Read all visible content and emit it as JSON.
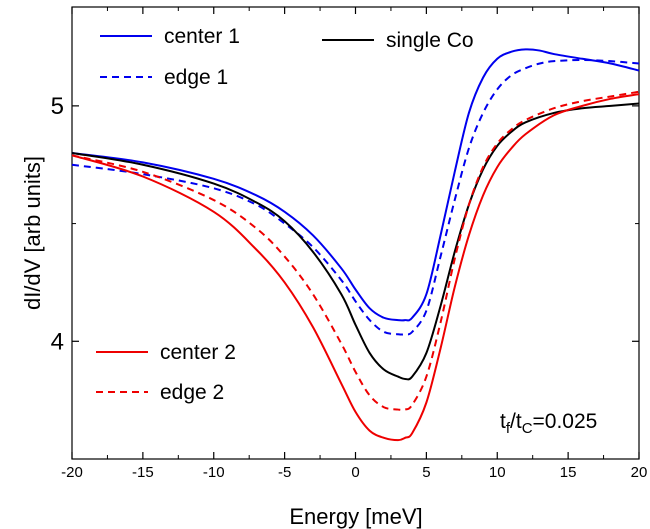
{
  "chart_data": {
    "type": "line",
    "xlabel": "Energy [meV]",
    "ylabel": "dI/dV [arb units]",
    "xlim": [
      -20,
      20
    ],
    "ylim": [
      3.5,
      5.42
    ],
    "x_ticks": [
      -20,
      -15,
      -10,
      -5,
      0,
      5,
      10,
      15,
      20
    ],
    "y_ticks": [
      4,
      5
    ],
    "y_tick_labels": [
      "4",
      "5"
    ],
    "grid": false,
    "annotation": {
      "main": "t",
      "sub1": "f",
      "slash": "/t",
      "sub2": "C",
      "value": "=0.025"
    },
    "series": [
      {
        "name": "center 1",
        "color": "#0000ee",
        "dash": "solid",
        "x": [
          -20,
          -15,
          -10,
          -7,
          -5,
          -3,
          -1,
          0,
          1,
          2,
          3,
          3.5,
          4,
          5,
          6,
          7,
          8,
          9,
          10,
          11,
          12,
          13,
          14,
          16,
          18,
          20
        ],
        "y": [
          4.8,
          4.76,
          4.69,
          4.62,
          4.55,
          4.45,
          4.31,
          4.22,
          4.14,
          4.1,
          4.09,
          4.09,
          4.1,
          4.2,
          4.45,
          4.72,
          4.97,
          5.12,
          5.2,
          5.23,
          5.24,
          5.235,
          5.22,
          5.2,
          5.18,
          5.15
        ]
      },
      {
        "name": "edge 1",
        "color": "#0000ee",
        "dash": "dashed",
        "x": [
          -20,
          -15,
          -10,
          -7,
          -5,
          -3,
          -1,
          0,
          1,
          2,
          3,
          3.5,
          4,
          5,
          6,
          7,
          8,
          9,
          10,
          11,
          12,
          13,
          14,
          16,
          18,
          20
        ],
        "y": [
          4.75,
          4.71,
          4.65,
          4.58,
          4.5,
          4.4,
          4.26,
          4.17,
          4.09,
          4.04,
          4.03,
          4.03,
          4.04,
          4.13,
          4.36,
          4.6,
          4.82,
          4.97,
          5.07,
          5.13,
          5.16,
          5.18,
          5.19,
          5.195,
          5.19,
          5.18
        ]
      },
      {
        "name": "single Co",
        "color": "#000000",
        "dash": "solid",
        "x": [
          -20,
          -15,
          -10,
          -7,
          -5,
          -3,
          -1,
          0,
          1,
          2,
          3,
          3.5,
          4,
          5,
          6,
          7,
          8,
          9,
          10,
          11,
          12,
          14,
          16,
          18,
          20
        ],
        "y": [
          4.8,
          4.75,
          4.67,
          4.59,
          4.51,
          4.38,
          4.2,
          4.07,
          3.95,
          3.88,
          3.85,
          3.84,
          3.85,
          3.95,
          4.15,
          4.38,
          4.58,
          4.73,
          4.83,
          4.89,
          4.93,
          4.97,
          4.99,
          5.0,
          5.01
        ]
      },
      {
        "name": "edge 2",
        "color": "#ee0000",
        "dash": "dashed",
        "x": [
          -20,
          -15,
          -10,
          -7,
          -5,
          -3,
          -1,
          0,
          1,
          2,
          3,
          3.5,
          4,
          5,
          6,
          7,
          8,
          9,
          10,
          11,
          12,
          14,
          16,
          18,
          20
        ],
        "y": [
          4.79,
          4.72,
          4.6,
          4.48,
          4.36,
          4.2,
          3.99,
          3.87,
          3.77,
          3.72,
          3.71,
          3.71,
          3.73,
          3.85,
          4.08,
          4.35,
          4.58,
          4.74,
          4.84,
          4.9,
          4.94,
          4.99,
          5.02,
          5.04,
          5.06
        ]
      },
      {
        "name": "center 2",
        "color": "#ee0000",
        "dash": "solid",
        "x": [
          -20,
          -15,
          -10,
          -7,
          -5,
          -3,
          -1,
          0,
          1,
          2,
          3,
          3.5,
          4,
          5,
          6,
          7,
          8,
          9,
          10,
          11,
          12,
          14,
          16,
          18,
          20
        ],
        "y": [
          4.79,
          4.7,
          4.55,
          4.39,
          4.25,
          4.06,
          3.82,
          3.7,
          3.62,
          3.59,
          3.58,
          3.59,
          3.61,
          3.74,
          3.97,
          4.23,
          4.45,
          4.62,
          4.74,
          4.82,
          4.88,
          4.96,
          5.0,
          5.03,
          5.05
        ]
      }
    ],
    "legend": [
      {
        "label": "center 1",
        "series": 0,
        "placement": "top-left"
      },
      {
        "label": "edge 1",
        "series": 1,
        "placement": "top-left"
      },
      {
        "label": "single Co",
        "series": 2,
        "placement": "top-center"
      },
      {
        "label": "center 2",
        "series": 4,
        "placement": "bottom-left"
      },
      {
        "label": "edge 2",
        "series": 3,
        "placement": "bottom-left"
      }
    ]
  }
}
